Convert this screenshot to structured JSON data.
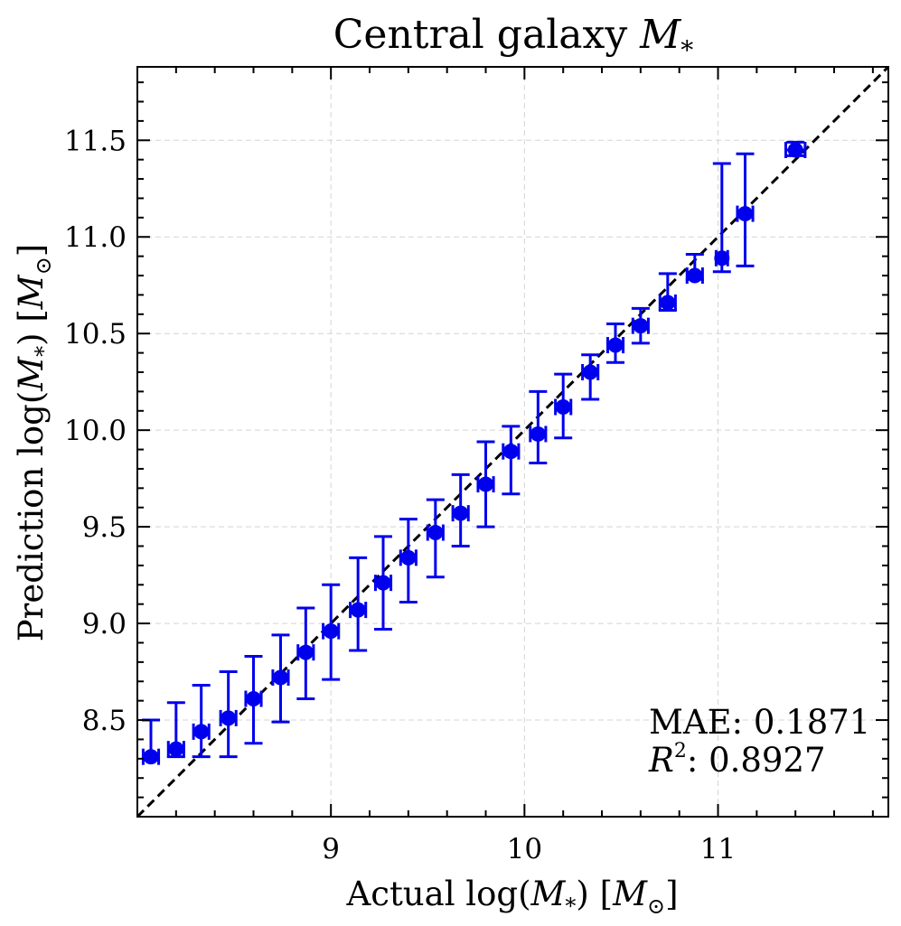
{
  "chart_data": {
    "type": "scatter",
    "title": "Central galaxy M*",
    "title_parts": [
      "Central galaxy ",
      "M",
      "*"
    ],
    "xlabel": "Actual log(M*) [M⊙]",
    "ylabel": "Prediction log(M*) [M⊙]",
    "xlabel_parts": [
      "Actual log(",
      "M",
      "*",
      ") [",
      "M",
      "⊙",
      "]"
    ],
    "ylabel_parts": [
      "Prediction log(",
      "M",
      "*",
      ") [",
      "M",
      "⊙",
      "]"
    ],
    "xlim": [
      8.0,
      11.88
    ],
    "ylim": [
      8.0,
      11.88
    ],
    "xticks": [
      9,
      10,
      11
    ],
    "xtick_labels": [
      "9",
      "10",
      "11"
    ],
    "yticks": [
      8.5,
      9.0,
      9.5,
      10.0,
      10.5,
      11.0,
      11.5
    ],
    "ytick_labels": [
      "8.5",
      "9.0",
      "9.5",
      "10.0",
      "10.5",
      "11.0",
      "11.5"
    ],
    "grid": true,
    "reference_line": "y = x (dashed)",
    "series": [
      {
        "name": "predictions",
        "color": "#0000ee",
        "x": [
          8.07,
          8.2,
          8.33,
          8.47,
          8.6,
          8.74,
          8.87,
          9.0,
          9.14,
          9.27,
          9.4,
          9.54,
          9.67,
          9.8,
          9.93,
          10.07,
          10.2,
          10.34,
          10.47,
          10.6,
          10.74,
          10.88,
          11.02,
          11.14,
          11.4
        ],
        "y": [
          8.31,
          8.35,
          8.44,
          8.51,
          8.61,
          8.72,
          8.85,
          8.96,
          9.07,
          9.21,
          9.34,
          9.47,
          9.57,
          9.72,
          9.89,
          9.98,
          10.12,
          10.3,
          10.44,
          10.54,
          10.66,
          10.8,
          10.89,
          11.12,
          11.45
        ],
        "y_low": [
          8.31,
          8.31,
          8.31,
          8.31,
          8.38,
          8.49,
          8.61,
          8.71,
          8.86,
          8.97,
          9.11,
          9.24,
          9.4,
          9.5,
          9.67,
          9.83,
          9.96,
          10.16,
          10.35,
          10.45,
          10.62,
          10.78,
          10.82,
          10.85,
          11.42
        ],
        "y_high": [
          8.5,
          8.59,
          8.68,
          8.75,
          8.83,
          8.94,
          9.08,
          9.2,
          9.34,
          9.45,
          9.54,
          9.64,
          9.77,
          9.94,
          10.02,
          10.2,
          10.29,
          10.39,
          10.55,
          10.63,
          10.81,
          10.91,
          11.38,
          11.43,
          11.49
        ],
        "x_err": [
          0.04,
          0.04,
          0.04,
          0.04,
          0.04,
          0.04,
          0.04,
          0.04,
          0.04,
          0.04,
          0.04,
          0.04,
          0.04,
          0.04,
          0.04,
          0.04,
          0.04,
          0.04,
          0.04,
          0.04,
          0.04,
          0.04,
          0.03,
          0.04,
          0.05
        ]
      }
    ],
    "annotations": {
      "mae_label": "MAE:",
      "mae_value": "0.1871",
      "r2_symbol": "R",
      "r2_exp": "2",
      "r2_sep": ":",
      "r2_value": "0.8927"
    }
  }
}
